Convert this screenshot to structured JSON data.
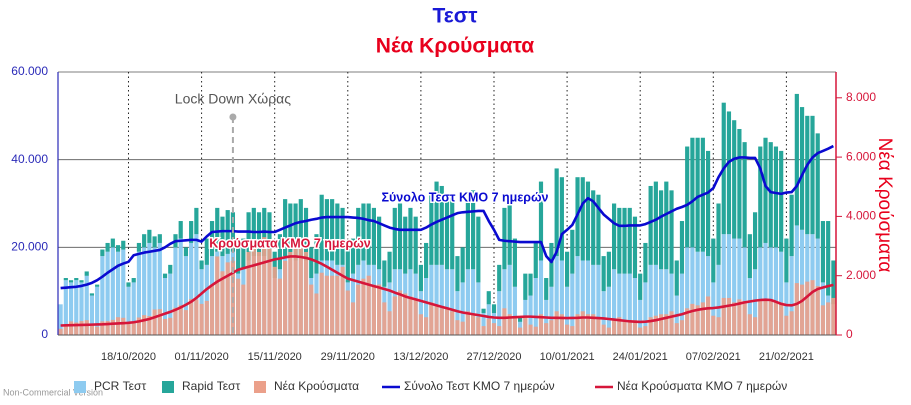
{
  "chart_data": {
    "type": "bar",
    "title": "Τεστ",
    "subtitle": "Νέα Κρούσματα",
    "y2_label": "Νέα Κρούσματα",
    "watermark": "Non-Commercial Version",
    "annotations": [
      "Lock Down Χώρας",
      "Σύνολο Τεστ ΚΜΟ 7 ημερών",
      "Κρούσματα ΚΜΟ 7 ημερών"
    ],
    "stacked": true,
    "grid": true,
    "legend": "bottom",
    "categories": [
      null,
      null,
      null,
      null,
      null,
      null,
      null,
      null,
      null,
      null,
      null,
      null,
      null,
      "18/10/2020",
      null,
      null,
      null,
      null,
      null,
      null,
      null,
      null,
      null,
      null,
      null,
      null,
      null,
      "01/11/2020",
      null,
      null,
      null,
      null,
      null,
      null,
      null,
      null,
      null,
      null,
      null,
      null,
      null,
      "15/11/2020",
      null,
      null,
      null,
      null,
      null,
      null,
      null,
      null,
      null,
      null,
      null,
      null,
      null,
      "29/11/2020",
      null,
      null,
      null,
      null,
      null,
      null,
      null,
      null,
      null,
      null,
      null,
      null,
      null,
      "13/12/2020",
      null,
      null,
      null,
      null,
      null,
      null,
      null,
      null,
      null,
      null,
      null,
      null,
      null,
      "27/12/2020",
      null,
      null,
      null,
      null,
      null,
      null,
      null,
      null,
      null,
      null,
      null,
      null,
      null,
      "10/01/2021",
      null,
      null,
      null,
      null,
      null,
      null,
      null,
      null,
      null,
      null,
      null,
      null,
      null,
      "24/01/2021",
      null,
      null,
      null,
      null,
      null,
      null,
      null,
      null,
      null,
      null,
      null,
      null,
      null,
      "07/02/2021",
      null,
      null,
      null,
      null,
      null,
      null,
      null,
      null,
      null,
      null,
      null,
      null,
      null,
      "21/02/2021",
      null,
      null,
      null,
      null,
      null,
      null,
      null,
      null,
      null
    ],
    "ylim": [
      0,
      60000
    ],
    "yticks": [
      0,
      {
        "value": 20000,
        "label": "20.000"
      },
      {
        "value": 40000,
        "label": "40.000"
      },
      {
        "value": 60000,
        "label": "60.000"
      }
    ],
    "y2lim": [
      0,
      8870
    ],
    "y2ticks": [
      0,
      {
        "value": 2000,
        "label": "2.000"
      },
      {
        "value": 4000,
        "label": "4.000"
      },
      {
        "value": 6000,
        "label": "6.000"
      },
      {
        "value": 8000,
        "label": "8.000"
      }
    ],
    "series": [
      {
        "name": "PCR Τεστ",
        "type": "bar",
        "color": "#8ecbf0",
        "values": [
          7000,
          12500,
          12000,
          12500,
          12000,
          13500,
          9000,
          11000,
          18000,
          19000,
          20000,
          19000,
          19500,
          11000,
          12000,
          19000,
          20000,
          21000,
          20000,
          21000,
          13000,
          14000,
          20000,
          22000,
          18000,
          21000,
          23000,
          15000,
          16000,
          18000,
          19000,
          18000,
          18500,
          19000,
          14000,
          15000,
          17000,
          18000,
          18000,
          18000,
          17000,
          13000,
          15000,
          18000,
          18000,
          17000,
          18000,
          17000,
          13000,
          14000,
          17000,
          17000,
          17000,
          16000,
          16000,
          12000,
          14000,
          16000,
          17000,
          16000,
          16000,
          15000,
          11000,
          12000,
          15000,
          15000,
          14000,
          15000,
          14000,
          10000,
          13000,
          16000,
          16000,
          16000,
          15000,
          15000,
          10000,
          12000,
          15000,
          15000,
          12000,
          5000,
          7000,
          5000,
          10000,
          15000,
          16000,
          11000,
          3000,
          8000,
          9000,
          13000,
          17000,
          8000,
          11000,
          18000,
          17000,
          11000,
          14000,
          18000,
          17000,
          17000,
          16000,
          16000,
          10000,
          11000,
          15000,
          14000,
          14000,
          14000,
          13000,
          8000,
          12000,
          16000,
          16000,
          15000,
          15000,
          14000,
          9000,
          14000,
          20000,
          20000,
          19000,
          19000,
          18000,
          12000,
          16000,
          23000,
          23000,
          22000,
          22000,
          20000,
          13000,
          15000,
          20000,
          21000,
          20000,
          20000,
          19000,
          12000,
          18000,
          25000,
          24000,
          23000,
          23000,
          22000,
          12000,
          9000,
          7000
        ]
      },
      {
        "name": "Rapid Τεστ",
        "type": "bar",
        "color": "#26a69a",
        "values": [
          0,
          500,
          500,
          500,
          500,
          1000,
          500,
          500,
          1500,
          2000,
          2000,
          1500,
          2000,
          1000,
          1000,
          2000,
          3000,
          3000,
          2500,
          2000,
          1000,
          2000,
          3000,
          4000,
          2000,
          5000,
          6000,
          2000,
          6000,
          8000,
          10000,
          9000,
          10000,
          9000,
          6000,
          7000,
          11000,
          11000,
          10000,
          11000,
          11000,
          6000,
          8000,
          13000,
          12000,
          13000,
          13000,
          12000,
          7000,
          9000,
          15000,
          14000,
          14000,
          14000,
          13000,
          8000,
          8000,
          13000,
          13000,
          14000,
          13000,
          12000,
          6000,
          7000,
          14000,
          15000,
          13000,
          14000,
          13000,
          6000,
          8000,
          16000,
          19000,
          18000,
          17000,
          17000,
          8000,
          8000,
          16000,
          18000,
          15000,
          1000,
          3000,
          2000,
          6000,
          14000,
          16000,
          11000,
          1000,
          6000,
          5000,
          8000,
          18000,
          5000,
          10000,
          20000,
          19000,
          8000,
          10000,
          18000,
          19000,
          18000,
          17000,
          16000,
          8000,
          8000,
          15000,
          15000,
          15000,
          15000,
          14000,
          6000,
          9000,
          18000,
          19000,
          18000,
          20000,
          19000,
          8000,
          12000,
          23000,
          25000,
          26000,
          26000,
          24000,
          10000,
          14000,
          30000,
          28000,
          27000,
          25000,
          24000,
          10000,
          13000,
          23000,
          24000,
          24000,
          23000,
          23000,
          10000,
          14000,
          30000,
          28000,
          27000,
          27000,
          24000,
          14000,
          17000,
          10000
        ]
      },
      {
        "name": "Νέα Κρούσματα",
        "type": "bar",
        "axis": "y2",
        "color": "#eba08a",
        "values": [
          210,
          350,
          460,
          420,
          470,
          500,
          330,
          280,
          460,
          470,
          510,
          600,
          580,
          400,
          420,
          590,
          670,
          640,
          860,
          870,
          540,
          580,
          920,
          1000,
          840,
          1210,
          1190,
          1050,
          1150,
          1700,
          2650,
          2150,
          2450,
          2500,
          1900,
          1700,
          2800,
          2900,
          2800,
          3300,
          2900,
          2300,
          1900,
          2500,
          2800,
          3000,
          3100,
          2800,
          1700,
          1400,
          2100,
          2000,
          2000,
          2000,
          2300,
          1500,
          1100,
          1700,
          1900,
          2000,
          1700,
          1700,
          1100,
          800,
          1300,
          1500,
          1400,
          1300,
          1200,
          700,
          600,
          1100,
          1000,
          900,
          900,
          800,
          500,
          450,
          800,
          700,
          600,
          300,
          550,
          400,
          300,
          900,
          700,
          600,
          250,
          600,
          350,
          280,
          700,
          400,
          500,
          800,
          700,
          350,
          300,
          700,
          800,
          700,
          700,
          600,
          350,
          250,
          500,
          600,
          500,
          500,
          500,
          250,
          300,
          600,
          650,
          700,
          700,
          800,
          400,
          500,
          900,
          1050,
          1000,
          1100,
          1300,
          650,
          600,
          1250,
          1250,
          1100,
          1200,
          1150,
          700,
          600,
          1200,
          1150,
          1200,
          1100,
          1100,
          650,
          800,
          1750,
          1700,
          1800,
          1850,
          1650,
          1000,
          1100,
          1250
        ]
      },
      {
        "name": "Σύνολο Τεστ ΚΜΟ 7 ημερών",
        "type": "line",
        "color": "#0a0ad0",
        "values": [
          10700,
          10800,
          10900,
          11000,
          11200,
          11500,
          11900,
          12500,
          13300,
          14200,
          15000,
          15800,
          16300,
          16700,
          18200,
          18500,
          18800,
          19000,
          19200,
          19400,
          20000,
          20800,
          21400,
          21500,
          21600,
          21700,
          21700,
          21300,
          22500,
          23500,
          23600,
          23700,
          23700,
          23700,
          23600,
          23600,
          23600,
          23500,
          23500,
          23600,
          23500,
          23500,
          24000,
          24500,
          25000,
          25500,
          25800,
          26000,
          26300,
          26500,
          26800,
          26900,
          26900,
          26900,
          26900,
          26900,
          26800,
          26700,
          26500,
          26200,
          26000,
          25500,
          25000,
          24500,
          24200,
          24000,
          24000,
          24000,
          24000,
          24000,
          24500,
          25200,
          25800,
          26300,
          26800,
          27300,
          27800,
          28000,
          28100,
          28200,
          28300,
          28300,
          26000,
          24000,
          21700,
          21500,
          21400,
          21300,
          21200,
          21200,
          21200,
          21200,
          21200,
          18000,
          16650,
          19000,
          23000,
          24000,
          25100,
          27500,
          30000,
          31200,
          30500,
          29000,
          27500,
          26500,
          25500,
          24900,
          24900,
          25000,
          25000,
          25000,
          25300,
          25800,
          26300,
          27000,
          27600,
          28200,
          28800,
          29200,
          29700,
          30500,
          31500,
          32000,
          32500,
          33500,
          36000,
          38000,
          39500,
          40200,
          40500,
          40500,
          40400,
          40400,
          38000,
          34000,
          32600,
          32400,
          32200,
          32500,
          32600,
          34000,
          36500,
          38800,
          40500,
          41500,
          42000,
          42500,
          43100
        ]
      },
      {
        "name": "Νέα Κρούσματα ΚΜΟ 7 ημερών",
        "type": "line",
        "axis": "y2",
        "color": "#d6163a",
        "values": [
          320,
          325,
          330,
          335,
          340,
          345,
          350,
          355,
          360,
          370,
          380,
          390,
          400,
          410,
          430,
          460,
          500,
          540,
          600,
          660,
          720,
          780,
          850,
          930,
          1020,
          1120,
          1250,
          1400,
          1550,
          1680,
          1800,
          1900,
          2000,
          2100,
          2200,
          2250,
          2300,
          2350,
          2400,
          2450,
          2500,
          2550,
          2580,
          2620,
          2650,
          2650,
          2630,
          2600,
          2550,
          2480,
          2400,
          2300,
          2200,
          2100,
          2000,
          1900,
          1850,
          1800,
          1750,
          1700,
          1650,
          1600,
          1550,
          1500,
          1430,
          1370,
          1300,
          1250,
          1200,
          1150,
          1100,
          1050,
          1000,
          950,
          900,
          850,
          800,
          760,
          730,
          700,
          670,
          640,
          610,
          590,
          580,
          580,
          590,
          600,
          610,
          620,
          620,
          610,
          600,
          590,
          580,
          580,
          575,
          570,
          575,
          580,
          590,
          590,
          580,
          570,
          560,
          540,
          520,
          500,
          480,
          460,
          450,
          440,
          450,
          470,
          500,
          540,
          580,
          620,
          660,
          700,
          760,
          810,
          850,
          880,
          900,
          910,
          930,
          960,
          990,
          1020,
          1060,
          1100,
          1130,
          1160,
          1180,
          1190,
          1180,
          1120,
          1050,
          1010,
          1000,
          1050,
          1150,
          1300,
          1450,
          1550,
          1600,
          1650,
          1690
        ]
      }
    ]
  }
}
